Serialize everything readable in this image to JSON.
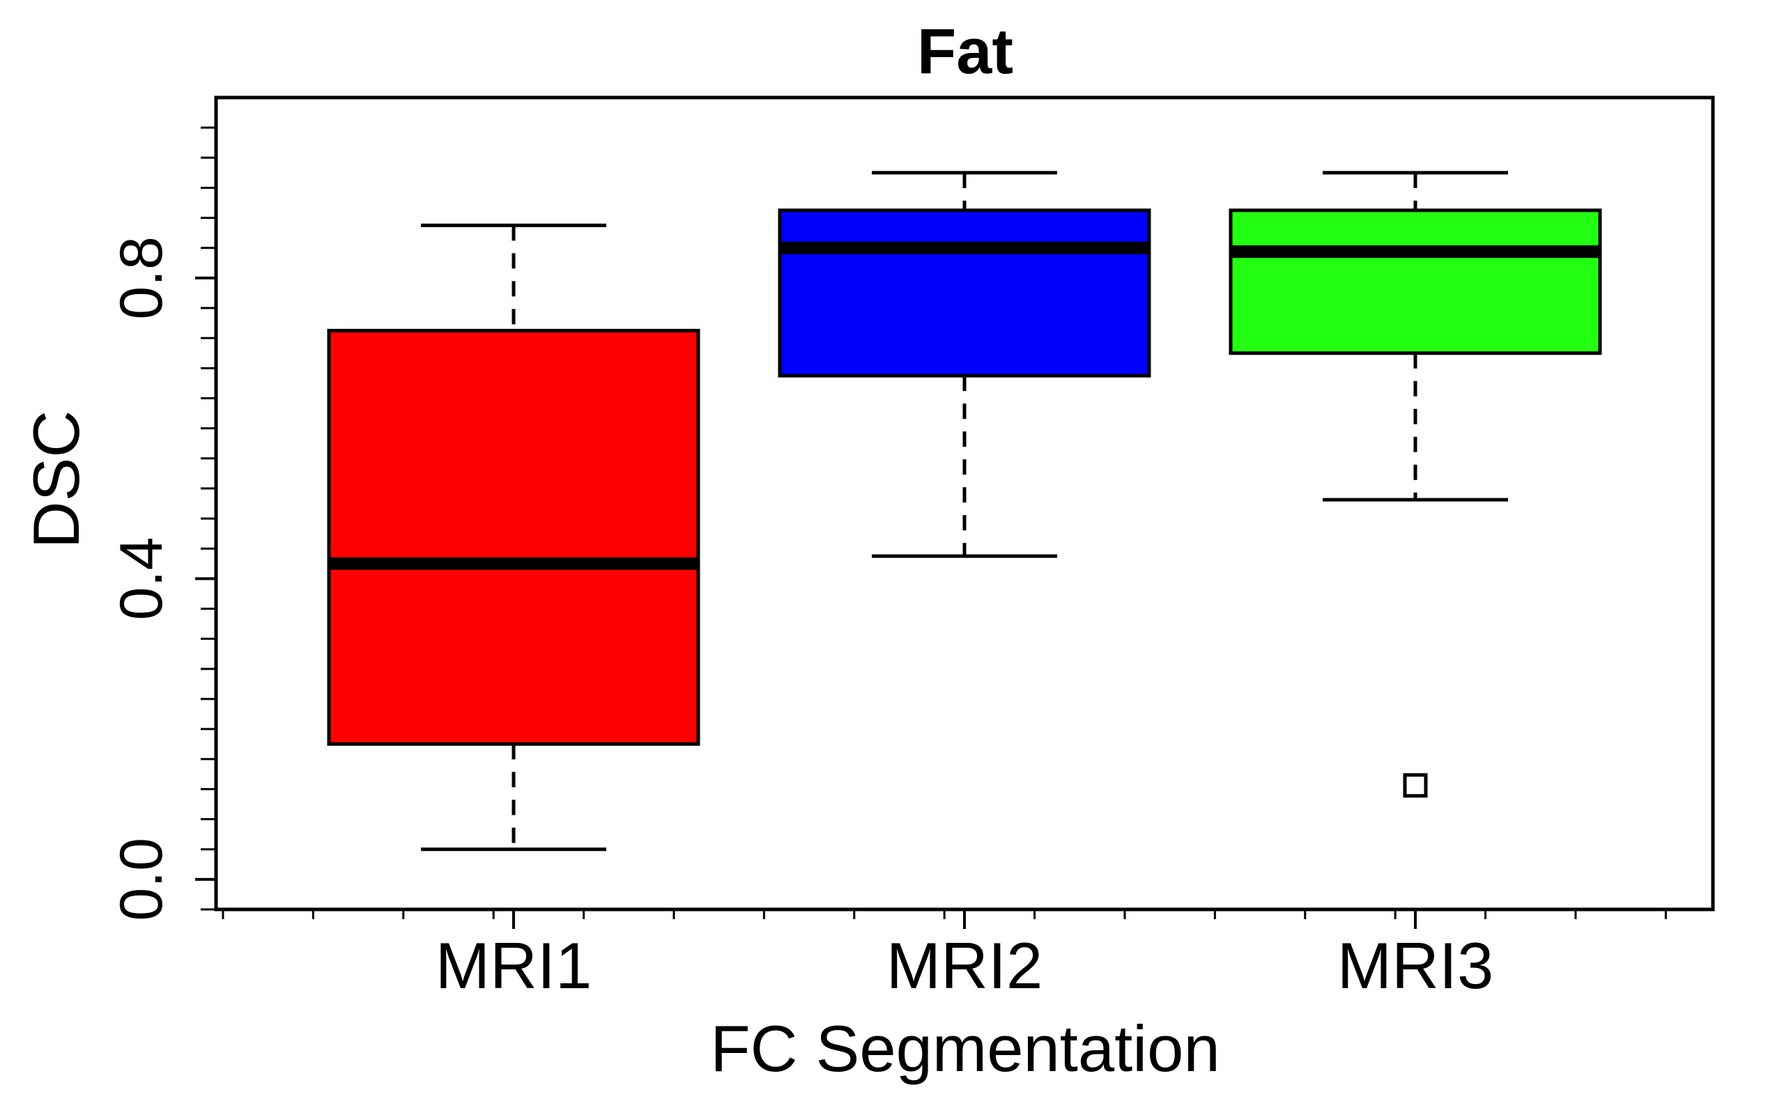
{
  "chart_data": {
    "type": "boxplot",
    "title": "Fat",
    "xlabel": "FC Segmentation",
    "ylabel": "DSC",
    "categories": [
      "MRI1",
      "MRI2",
      "MRI3"
    ],
    "ylim": [
      -0.04,
      1.04
    ],
    "y_ticks": [
      0.0,
      0.4,
      0.8
    ],
    "y_tick_labels": [
      "0.0",
      "0.4",
      "0.8"
    ],
    "grid": false,
    "series": [
      {
        "category": "MRI1",
        "whisker_low": 0.04,
        "q1": 0.18,
        "median": 0.42,
        "q3": 0.73,
        "whisker_high": 0.87,
        "outliers": [],
        "color": "#ff0000"
      },
      {
        "category": "MRI2",
        "whisker_low": 0.43,
        "q1": 0.67,
        "median": 0.84,
        "q3": 0.89,
        "whisker_high": 0.94,
        "outliers": [],
        "color": "#0000ff"
      },
      {
        "category": "MRI3",
        "whisker_low": 0.505,
        "q1": 0.7,
        "median": 0.835,
        "q3": 0.89,
        "whisker_high": 0.94,
        "outliers": [
          0.125
        ],
        "color": "#22ff11"
      }
    ]
  }
}
